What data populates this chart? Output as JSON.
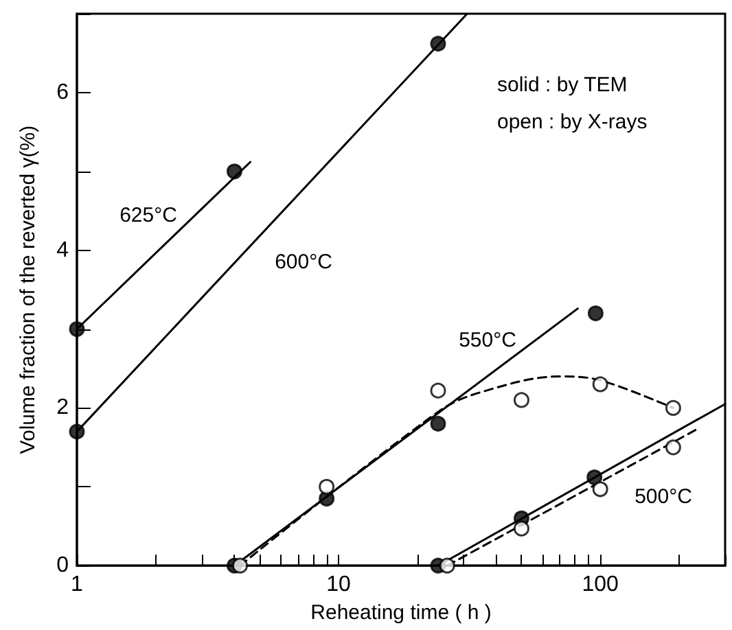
{
  "chart_data": {
    "type": "scatter",
    "xlabel": "Reheating time ( h )",
    "ylabel": "Volume fraction of the reverted γ(%)",
    "log": "x",
    "xlim": [
      1,
      300
    ],
    "xticks": [
      1,
      {
        "value": 2,
        "label": null
      },
      {
        "value": 3,
        "label": null
      },
      {
        "value": 4,
        "label": null
      },
      {
        "value": 5,
        "label": null
      },
      {
        "value": 6,
        "label": null
      },
      {
        "value": 7,
        "label": null
      },
      {
        "value": 8,
        "label": null
      },
      {
        "value": 9,
        "label": null
      },
      10,
      {
        "value": 20,
        "label": null
      },
      {
        "value": 30,
        "label": null
      },
      {
        "value": 40,
        "label": null
      },
      {
        "value": 50,
        "label": null
      },
      {
        "value": 60,
        "label": null
      },
      {
        "value": 70,
        "label": null
      },
      {
        "value": 80,
        "label": null
      },
      {
        "value": 90,
        "label": null
      },
      100,
      {
        "value": 200,
        "label": null
      },
      {
        "value": 300,
        "label": null
      }
    ],
    "ylim": [
      0,
      7
    ],
    "yticks": [
      0,
      {
        "value": 1,
        "label": null
      },
      2,
      {
        "value": 3,
        "label": null
      },
      4,
      {
        "value": 5,
        "label": null
      },
      6,
      {
        "value": 7,
        "label": null
      }
    ],
    "series": [
      {
        "color": "#000000",
        "marker": "circle",
        "x": [
          1,
          4
        ],
        "values": [
          3.0,
          5.0
        ]
      },
      {
        "color": "#000000",
        "marker": "circle",
        "x": [
          1,
          24
        ],
        "values": [
          1.7,
          6.62
        ]
      },
      {
        "color": "#000000",
        "marker": "circle",
        "x": [
          4,
          9,
          24,
          96
        ],
        "values": [
          0,
          0.85,
          1.8,
          3.2
        ]
      },
      {
        "color": "#ffffff",
        "marker": "circle",
        "x": [
          4.2,
          9,
          24,
          50,
          100,
          190
        ],
        "values": [
          0,
          1.0,
          2.22,
          2.1,
          2.3,
          2.0
        ]
      },
      {
        "color": "#000000",
        "marker": "circle",
        "x": [
          24,
          50,
          95
        ],
        "values": [
          0,
          0.6,
          1.12
        ]
      },
      {
        "color": "#ffffff",
        "marker": "circle",
        "x": [
          26,
          50,
          100,
          190
        ],
        "values": [
          0,
          0.47,
          0.97,
          1.5
        ]
      },
      {
        "type": "line",
        "color": "#000000",
        "marker": "none",
        "line_style": "solid",
        "x": [
          1,
          4.6
        ],
        "values": [
          3.0,
          5.12
        ]
      },
      {
        "type": "line",
        "color": "#000000",
        "marker": "none",
        "line_style": "solid",
        "x": [
          1,
          31
        ],
        "values": [
          1.7,
          7
        ]
      },
      {
        "type": "line",
        "color": "#000000",
        "marker": "none",
        "line_style": "solid",
        "x": [
          4,
          82
        ],
        "values": [
          0,
          3.26
        ]
      },
      {
        "type": "line",
        "color": "#000000",
        "marker": "none",
        "line_style": "dashed",
        "x": [
          4.2,
          24,
          35,
          70,
          100,
          190
        ],
        "values": [
          0,
          1.95,
          2.2,
          2.4,
          2.35,
          2.0
        ]
      },
      {
        "type": "line",
        "color": "#000000",
        "marker": "none",
        "line_style": "solid",
        "x": [
          24,
          300
        ],
        "values": [
          0,
          2.05
        ]
      },
      {
        "type": "line",
        "color": "#000000",
        "marker": "none",
        "line_style": "dashed",
        "x": [
          26,
          240
        ],
        "values": [
          0,
          1.75
        ]
      }
    ],
    "annotations": [
      "625°C",
      "600°C",
      "550°C",
      "500°C",
      "solid : by TEM",
      "open : by X-rays"
    ]
  }
}
